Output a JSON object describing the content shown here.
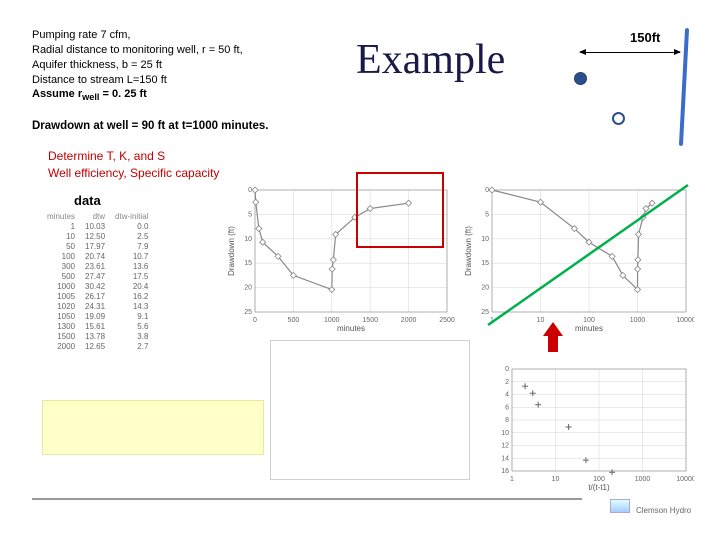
{
  "params": {
    "l1": "Pumping rate 7 cfm,",
    "l2": "Radial distance to monitoring well, r = 50 ft,",
    "l3": "Aquifer thickness, b = 25 ft",
    "l4": "Distance to stream L=150 ft",
    "l5_pre": "Assume r",
    "l5_sub": "well",
    "l5_post": " = 0. 25 ft"
  },
  "drawdown": "Drawdown at well = 90 ft at t=1000 minutes.",
  "title": "Example",
  "dist": "150ft",
  "determine": {
    "l1": "Determine T, K, and S",
    "l2": "Well efficiency, Specific capacity"
  },
  "data_label": "data",
  "table": {
    "headers": [
      "minutes",
      "dtw",
      "dtw-initial"
    ],
    "rows": [
      [
        "1",
        "10.03",
        "0.0"
      ],
      [
        "10",
        "12.50",
        "2.5"
      ],
      [
        "50",
        "17.97",
        "7.9"
      ],
      [
        "100",
        "20.74",
        "10.7"
      ],
      [
        "300",
        "23.61",
        "13.6"
      ],
      [
        "500",
        "27.47",
        "17.5"
      ],
      [
        "1000",
        "30.42",
        "20.4"
      ],
      [
        "1005",
        "26.17",
        "16.2"
      ],
      [
        "1020",
        "24.31",
        "14.3"
      ],
      [
        "1050",
        "19.09",
        "9.1"
      ],
      [
        "1300",
        "15.61",
        "5.6"
      ],
      [
        "1500",
        "13.78",
        "3.8"
      ],
      [
        "2000",
        "12.65",
        "2.7"
      ]
    ]
  },
  "chart1": {
    "ylabel": "Drawdown (ft)",
    "xlabel": "minutes",
    "xlim": [
      0,
      2500
    ],
    "ylim": [
      0,
      25
    ],
    "xticks": [
      0,
      500,
      1000,
      1500,
      2000,
      2500
    ],
    "yticks": [
      0,
      5,
      10,
      15,
      20,
      25
    ],
    "points": [
      [
        1,
        0
      ],
      [
        10,
        2.5
      ],
      [
        50,
        7.9
      ],
      [
        100,
        10.7
      ],
      [
        300,
        13.6
      ],
      [
        500,
        17.5
      ],
      [
        1000,
        20.4
      ],
      [
        1005,
        16.2
      ],
      [
        1020,
        14.3
      ],
      [
        1050,
        9.1
      ],
      [
        1300,
        5.6
      ],
      [
        1500,
        3.8
      ],
      [
        2000,
        2.7
      ]
    ],
    "grid_color": "#cccccc",
    "line_color": "#888888"
  },
  "chart2": {
    "ylabel": "Drawdown (ft)",
    "xlabel": "minutes",
    "xlog": true,
    "xlim": [
      1,
      10000
    ],
    "ylim": [
      0,
      25
    ],
    "xticks": [
      1,
      10,
      100,
      1000,
      10000
    ],
    "yticks": [
      0,
      5,
      10,
      15,
      20,
      25
    ],
    "points": [
      [
        1,
        0
      ],
      [
        10,
        2.5
      ],
      [
        50,
        7.9
      ],
      [
        100,
        10.7
      ],
      [
        300,
        13.6
      ],
      [
        500,
        17.5
      ],
      [
        1000,
        20.4
      ],
      [
        1005,
        16.2
      ],
      [
        1020,
        14.3
      ],
      [
        1050,
        9.1
      ],
      [
        1300,
        5.6
      ],
      [
        1500,
        3.8
      ],
      [
        2000,
        2.7
      ]
    ],
    "grid_color": "#cccccc",
    "line_color": "#888888"
  },
  "chart3": {
    "xlabel": "t/(t-t1)",
    "xlim": [
      1,
      10000
    ],
    "ylim": [
      0,
      16
    ],
    "xlog": true,
    "xticks": [
      1,
      10,
      100,
      1000,
      10000
    ],
    "yticks": [
      0,
      2,
      4,
      6,
      8,
      10,
      12,
      14,
      16
    ],
    "points": [
      [
        2,
        2.7
      ],
      [
        3,
        3.8
      ],
      [
        4,
        5.6
      ],
      [
        20,
        9.1
      ],
      [
        50,
        14.3
      ],
      [
        200,
        16.2
      ]
    ],
    "marker": "+",
    "grid_color": "#cccccc"
  },
  "footer": "Clemson Hydro"
}
